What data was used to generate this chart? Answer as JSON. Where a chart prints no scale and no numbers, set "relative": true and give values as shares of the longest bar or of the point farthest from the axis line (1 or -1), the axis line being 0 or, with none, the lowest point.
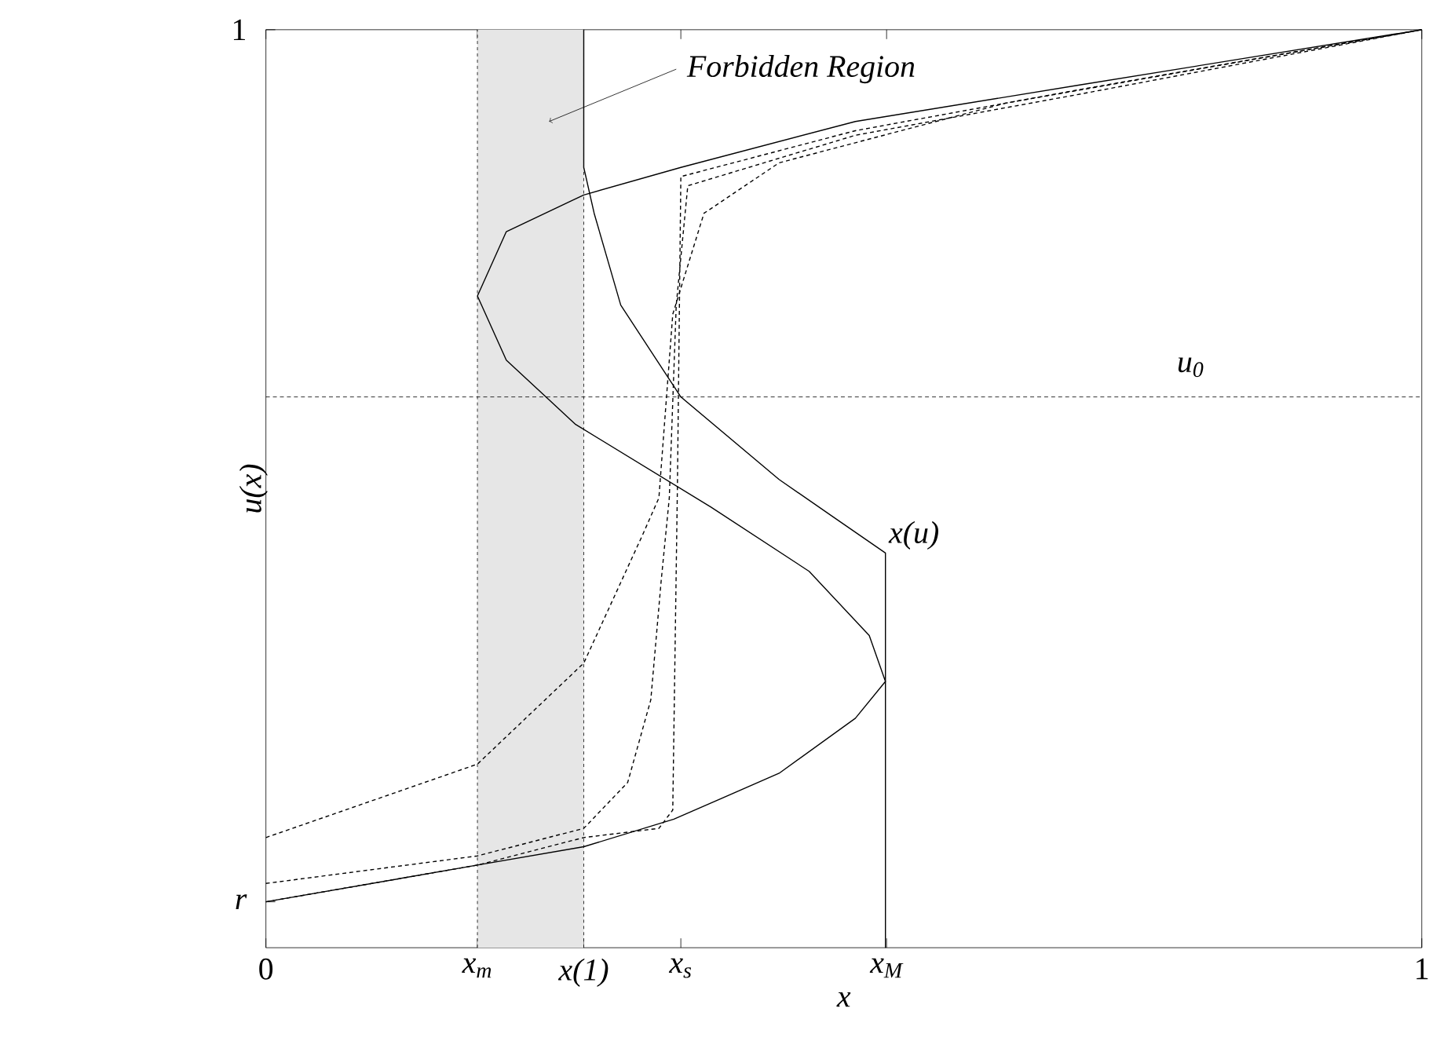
{
  "chart_data": {
    "type": "line",
    "xlabel": "x",
    "ylabel": "u(x)",
    "xlim": [
      0,
      1
    ],
    "relative": true,
    "xticks": [
      0,
      {
        "value": 0.183,
        "label": "x$_{m}$"
      },
      {
        "value": 0.275,
        "label": "x(1)"
      },
      {
        "value": 0.359,
        "label": "x$_{s}$"
      },
      {
        "value": 0.537,
        "label": "x$_{M}$"
      },
      1
    ],
    "marker": "none",
    "series": [
      {
        "color": "#000000",
        "line_style": "solid",
        "x": [
          0,
          0.183,
          0.275,
          0.353,
          0.444,
          0.51,
          0.536,
          0.522,
          0.47,
          0.385,
          0.268,
          0.208,
          0.183,
          0.208,
          0.275,
          0.359,
          0.51,
          0.705,
          1
        ],
        "values": [
          0.05,
          0.09,
          0.11,
          0.14,
          0.19,
          0.25,
          0.29,
          0.34,
          0.41,
          0.48,
          0.57,
          0.64,
          0.71,
          0.78,
          0.82,
          0.85,
          0.9,
          0.94,
          1
        ]
      },
      {
        "color": "#000000",
        "line_style": "solid",
        "x": [
          0.275,
          0.275,
          0.284,
          0.307,
          0.359,
          0.444,
          0.49,
          0.536,
          0.536
        ],
        "values": [
          1,
          0.85,
          0.8,
          0.7,
          0.6,
          0.51,
          0.47,
          0.43,
          0
        ]
      },
      {
        "color": "#000000",
        "line_style": "dotted",
        "x": [
          0,
          0.183,
          0.275,
          0.34,
          0.352,
          0.356,
          0.359,
          0.51,
          0.705,
          1
        ],
        "values": [
          0.05,
          0.09,
          0.12,
          0.13,
          0.15,
          0.5,
          0.84,
          0.89,
          0.935,
          1
        ]
      },
      {
        "color": "#000000",
        "line_style": "dotted",
        "x": [
          0,
          0.183,
          0.275,
          0.313,
          0.333,
          0.342,
          0.349,
          0.355,
          0.365,
          0.51,
          0.705,
          1
        ],
        "values": [
          0.07,
          0.1,
          0.13,
          0.18,
          0.27,
          0.4,
          0.49,
          0.7,
          0.83,
          0.885,
          0.93,
          1
        ]
      },
      {
        "color": "#000000",
        "line_style": "dotted",
        "x": [
          0,
          0.183,
          0.275,
          0.326,
          0.34,
          0.352,
          0.379,
          0.444,
          0.64,
          1
        ],
        "values": [
          0.12,
          0.2,
          0.31,
          0.45,
          0.49,
          0.69,
          0.8,
          0.855,
          0.92,
          1
        ]
      }
    ],
    "ref_lines": [
      {
        "axis": "y",
        "value": 0.6,
        "label": "u$_{0}$",
        "line_style": "dotted"
      }
    ],
    "bands": [
      {
        "axis": "x",
        "from": 0.183,
        "to": 0.275,
        "label": "Forbidden Region",
        "color": "#e6e6e6"
      }
    ],
    "annotations": [
      {
        "text": "r",
        "x": 0,
        "y": 0.05
      },
      "1",
      {
        "text": "x(u)",
        "x": 0.536,
        "y": 0.43
      }
    ]
  }
}
